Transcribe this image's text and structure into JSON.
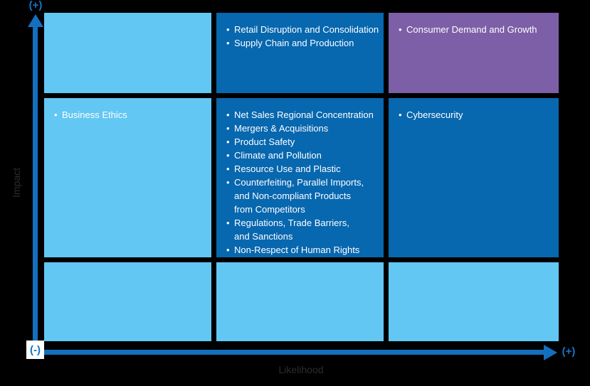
{
  "colors": {
    "background": "#000000",
    "cell_light": "#62C7F3",
    "cell_dark": "#0767AF",
    "cell_purple": "#7D5FA7",
    "axis": "#1470BE",
    "accent_label": "#1573C9",
    "axis_text": "#2B2D2F",
    "item_text": "#FFFFFF",
    "origin_box_bg": "#FFFFFF"
  },
  "axes": {
    "y": {
      "title": "Impact",
      "max_label": "(+)"
    },
    "x": {
      "title": "Likelihood",
      "max_label": "(+)"
    },
    "origin_label": "(-)"
  },
  "grid": {
    "cells": [
      {
        "tone": "light",
        "impact": "high",
        "likelihood": "low",
        "items": []
      },
      {
        "tone": "dark",
        "impact": "high",
        "likelihood": "medium",
        "items": [
          "Retail Disruption and Consolidation",
          "Supply Chain and Production"
        ]
      },
      {
        "tone": "purple",
        "impact": "high",
        "likelihood": "high",
        "items": [
          "Consumer Demand and Growth"
        ]
      },
      {
        "tone": "light",
        "impact": "medium",
        "likelihood": "low",
        "items": [
          "Business Ethics"
        ]
      },
      {
        "tone": "dark",
        "impact": "medium",
        "likelihood": "medium",
        "items": [
          "Net Sales Regional Concentration",
          "Mergers & Acquisitions",
          "Product Safety",
          "Climate and Pollution",
          "Resource Use and Plastic",
          "Counterfeiting, Parallel Imports,\nand Non-compliant Products\nfrom Competitors",
          "Regulations, Trade Barriers,\nand Sanctions",
          "Non-Respect of Human Rights"
        ]
      },
      {
        "tone": "dark",
        "impact": "medium",
        "likelihood": "high",
        "items": [
          "Cybersecurity"
        ]
      },
      {
        "tone": "light",
        "impact": "low",
        "likelihood": "low",
        "items": []
      },
      {
        "tone": "light",
        "impact": "low",
        "likelihood": "medium",
        "items": []
      },
      {
        "tone": "light",
        "impact": "low",
        "likelihood": "high",
        "items": []
      }
    ]
  },
  "chart_data": {
    "type": "heatmap",
    "title": "",
    "xlabel": "Likelihood",
    "ylabel": "Impact",
    "x_categories": [
      "low",
      "medium",
      "high"
    ],
    "y_categories": [
      "low",
      "medium",
      "high"
    ],
    "axis_annotations": {
      "y_top": "(+)",
      "x_right": "(+)",
      "origin": "(-)"
    },
    "legend": "none",
    "grid": "3x3 risk matrix, cells colored light blue (low), dark blue (elevated), purple (highest)",
    "points": [
      {
        "label": "Retail Disruption and Consolidation",
        "likelihood": "medium",
        "impact": "high"
      },
      {
        "label": "Supply Chain and Production",
        "likelihood": "medium",
        "impact": "high"
      },
      {
        "label": "Consumer Demand and Growth",
        "likelihood": "high",
        "impact": "high"
      },
      {
        "label": "Business Ethics",
        "likelihood": "low",
        "impact": "medium"
      },
      {
        "label": "Net Sales Regional Concentration",
        "likelihood": "medium",
        "impact": "medium"
      },
      {
        "label": "Mergers & Acquisitions",
        "likelihood": "medium",
        "impact": "medium"
      },
      {
        "label": "Product Safety",
        "likelihood": "medium",
        "impact": "medium"
      },
      {
        "label": "Climate and Pollution",
        "likelihood": "medium",
        "impact": "medium"
      },
      {
        "label": "Resource Use and Plastic",
        "likelihood": "medium",
        "impact": "medium"
      },
      {
        "label": "Counterfeiting, Parallel Imports, and Non-compliant Products from Competitors",
        "likelihood": "medium",
        "impact": "medium"
      },
      {
        "label": "Regulations, Trade Barriers, and Sanctions",
        "likelihood": "medium",
        "impact": "medium"
      },
      {
        "label": "Non-Respect of Human Rights",
        "likelihood": "medium",
        "impact": "medium"
      },
      {
        "label": "Cybersecurity",
        "likelihood": "high",
        "impact": "medium"
      }
    ]
  }
}
